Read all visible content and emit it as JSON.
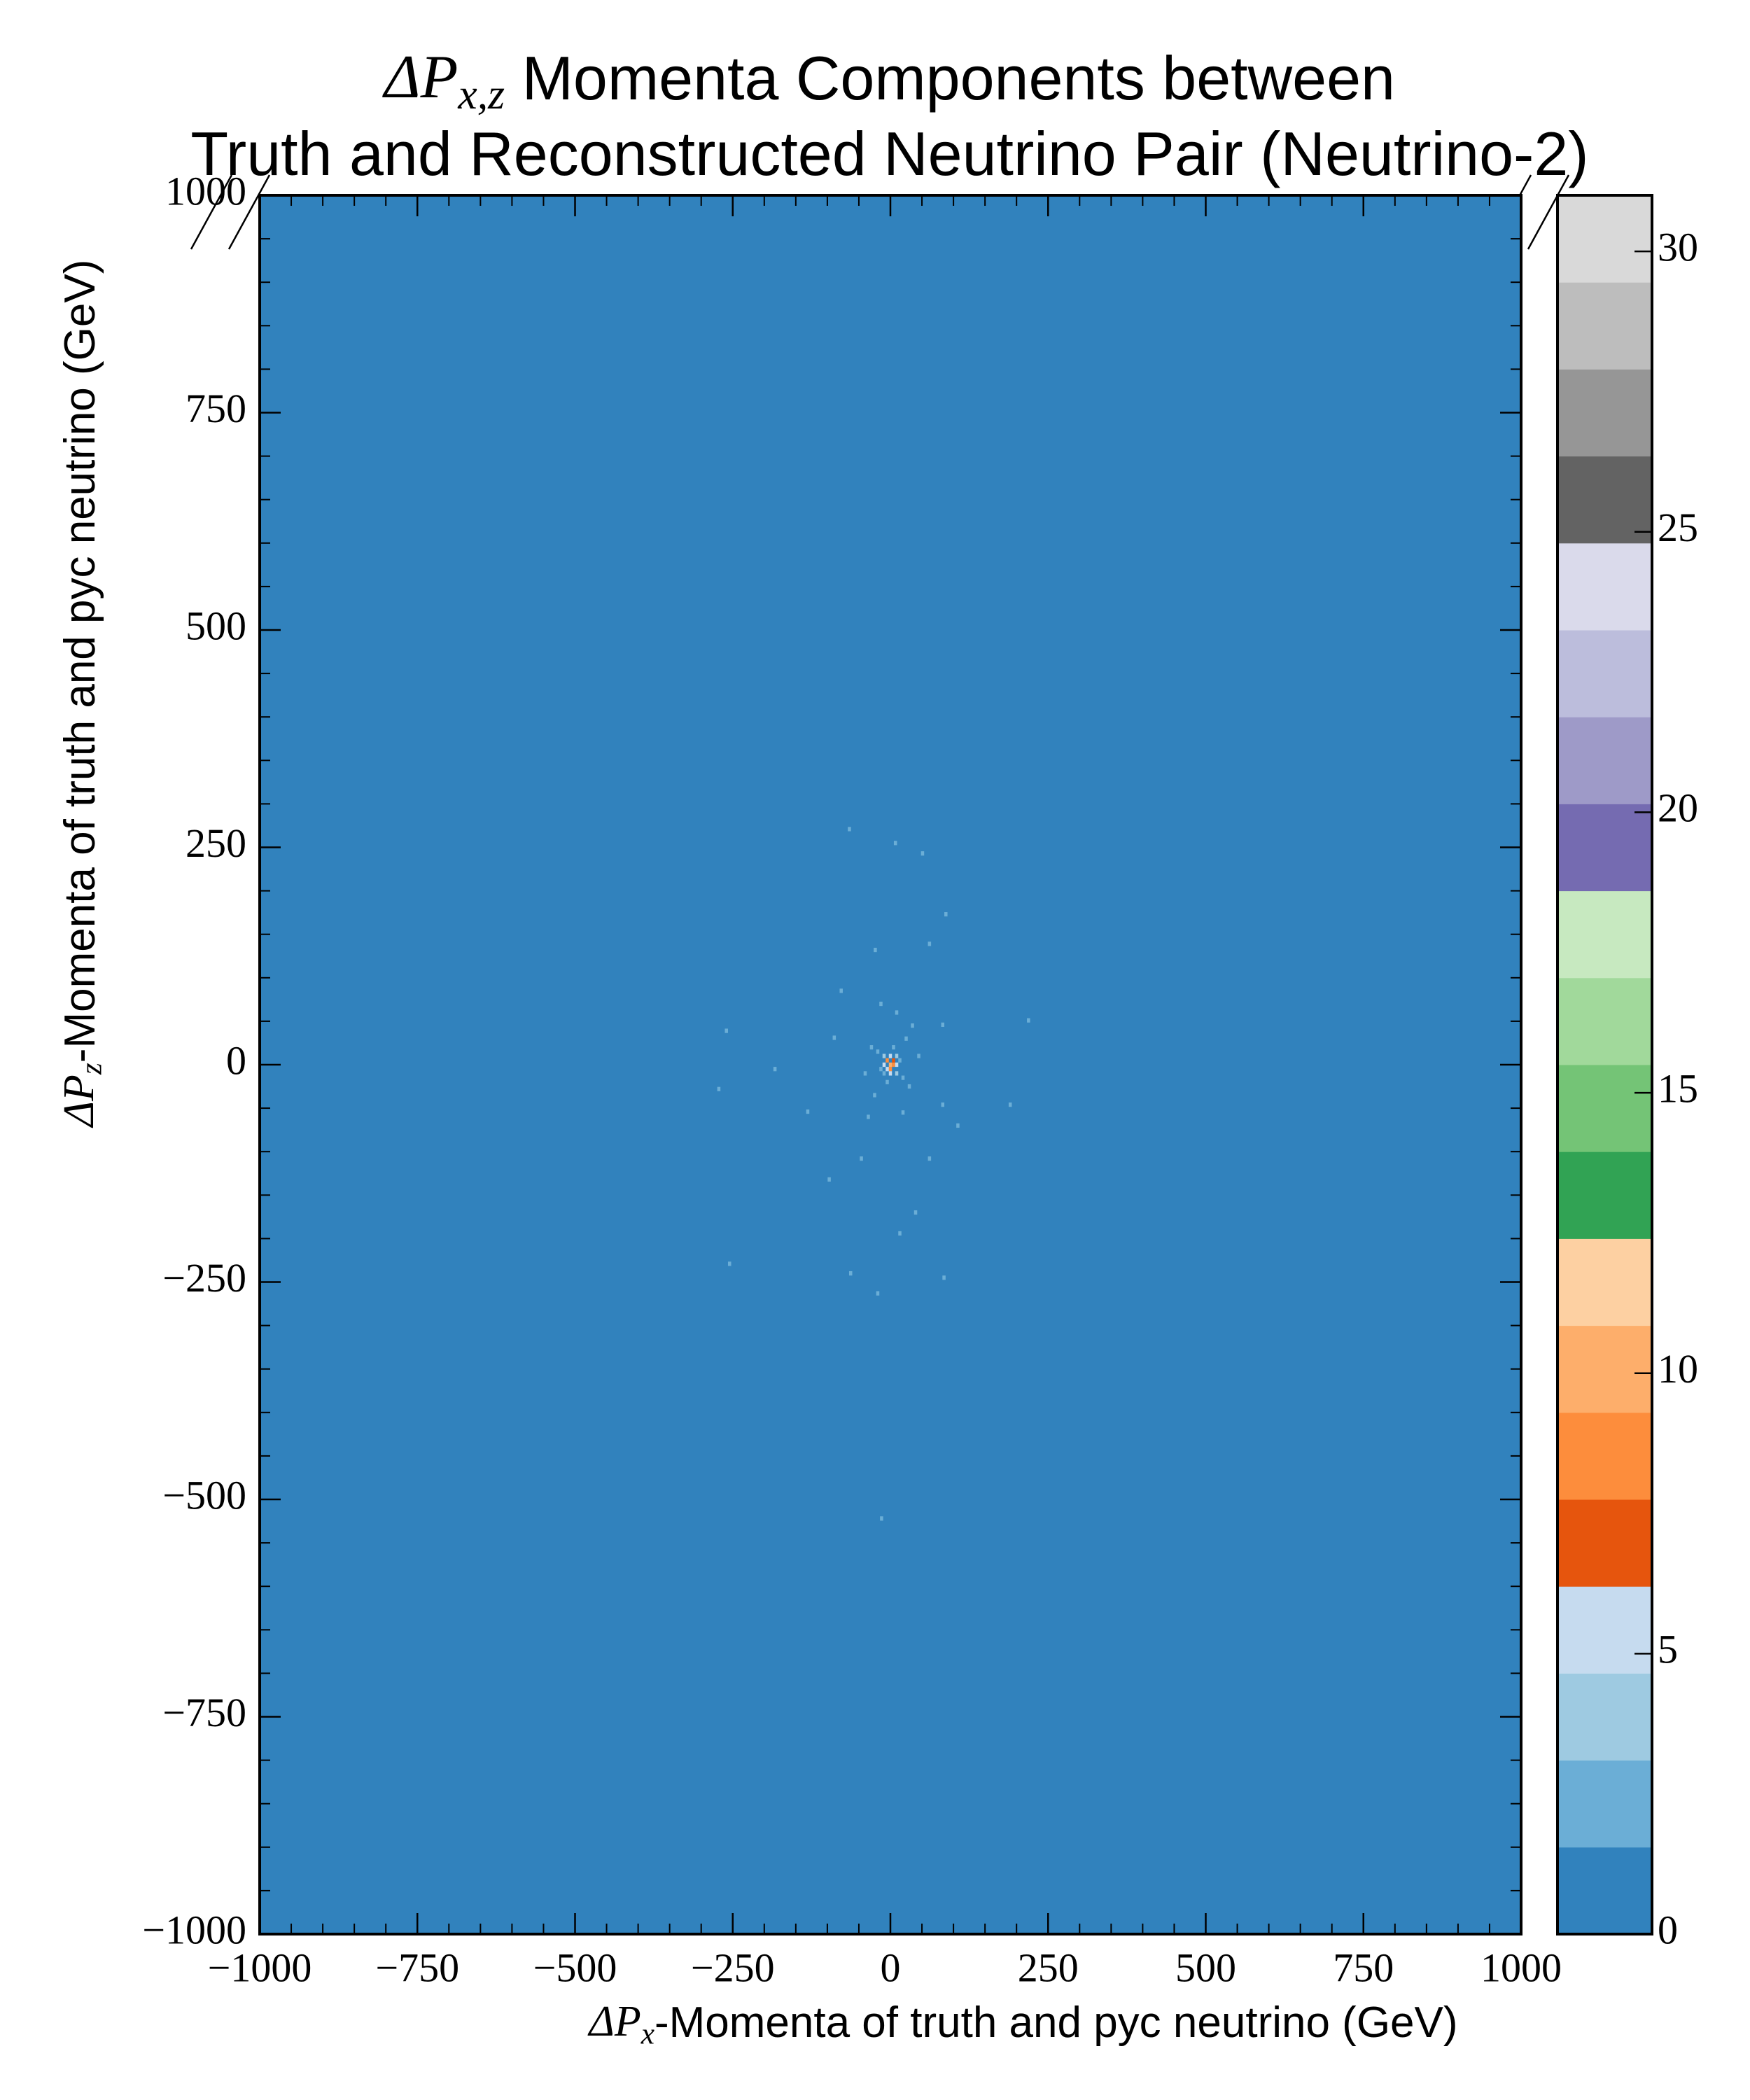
{
  "chart_data": {
    "type": "heatmap",
    "title": [
      {
        "symbol": "ΔP",
        "subscript": "x,z",
        "text": " Momenta Components between"
      },
      {
        "text": "Truth and Reconstructed Neutrino Pair (Neutrino-2)"
      }
    ],
    "xlabel": {
      "symbol": "ΔP",
      "subscript": "x",
      "text": "-Momenta of truth and pyc neutrino (GeV)"
    },
    "ylabel": {
      "symbol": "ΔP",
      "subscript": "z",
      "text": "-Momenta of truth and pyc neutrino (GeV)"
    },
    "xlim": [
      -1000,
      1000
    ],
    "ylim": [
      -1000,
      1000
    ],
    "xticks": [
      {
        "value": -1000,
        "label": "−1000"
      },
      {
        "value": -750,
        "label": "−750"
      },
      {
        "value": -500,
        "label": "−500"
      },
      {
        "value": -250,
        "label": "−250"
      },
      0,
      250,
      500,
      750,
      1000
    ],
    "yticks": [
      {
        "value": -1000,
        "label": "−1000"
      },
      {
        "value": -750,
        "label": "−750"
      },
      {
        "value": -500,
        "label": "−500"
      },
      {
        "value": -250,
        "label": "−250"
      },
      0,
      250,
      500,
      750,
      1000
    ],
    "x": [
      -65,
      8,
      51,
      88,
      -260,
      -183,
      -272,
      219,
      190,
      -255,
      -63,
      85,
      -20,
      -14,
      107,
      -97,
      40,
      15,
      -131,
      -78,
      62,
      -24,
      83,
      -89,
      83,
      -46,
      62,
      0,
      5,
      -5,
      0,
      5,
      -5,
      10,
      -10,
      0,
      0,
      10,
      -10,
      10,
      -10,
      15,
      -15,
      5,
      -5,
      20,
      -20,
      25,
      -30,
      30,
      -25,
      35,
      -40,
      45,
      10,
      -15,
      20,
      -35
    ],
    "y": [
      271,
      255,
      243,
      173,
      39,
      -5,
      -28,
      51,
      -46,
      -229,
      -240,
      -245,
      -263,
      -522,
      -70,
      -132,
      -170,
      -194,
      -54,
      85,
      139,
      132,
      46,
      31,
      -46,
      -108,
      -108,
      0,
      0,
      5,
      -5,
      5,
      -5,
      0,
      0,
      10,
      -10,
      10,
      10,
      -10,
      -10,
      5,
      -5,
      20,
      -20,
      -15,
      15,
      30,
      20,
      -25,
      -35,
      45,
      -10,
      10,
      60,
      70,
      -55,
      -60
    ],
    "values": [
      2,
      2,
      2,
      2,
      2,
      2,
      2,
      2,
      2,
      2,
      2,
      2,
      2,
      3,
      2,
      2,
      2,
      2,
      2,
      3,
      2,
      3,
      2,
      3,
      2,
      2,
      3,
      10,
      9,
      8,
      8,
      7,
      6,
      5,
      5,
      5,
      5,
      4,
      4,
      4,
      3,
      3,
      3,
      3,
      3,
      3,
      2,
      3,
      3,
      3,
      2,
      2,
      3,
      2,
      3,
      2,
      3,
      2
    ],
    "clim": [
      0,
      31
    ],
    "colorbar_ticks": [
      0,
      5,
      10,
      15,
      20,
      25,
      30
    ],
    "colormap": [
      "#3182bd",
      "#6baed6",
      "#9ecae1",
      "#c6dbef",
      "#e6550d",
      "#fd8d3c",
      "#fdae6b",
      "#fdd0a2",
      "#31a354",
      "#74c476",
      "#a1d99b",
      "#c7e9c0",
      "#756bb1",
      "#9e9ac8",
      "#bcbddc",
      "#dadaeb",
      "#636363",
      "#969696",
      "#bdbdbd",
      "#d9d9d9"
    ]
  }
}
